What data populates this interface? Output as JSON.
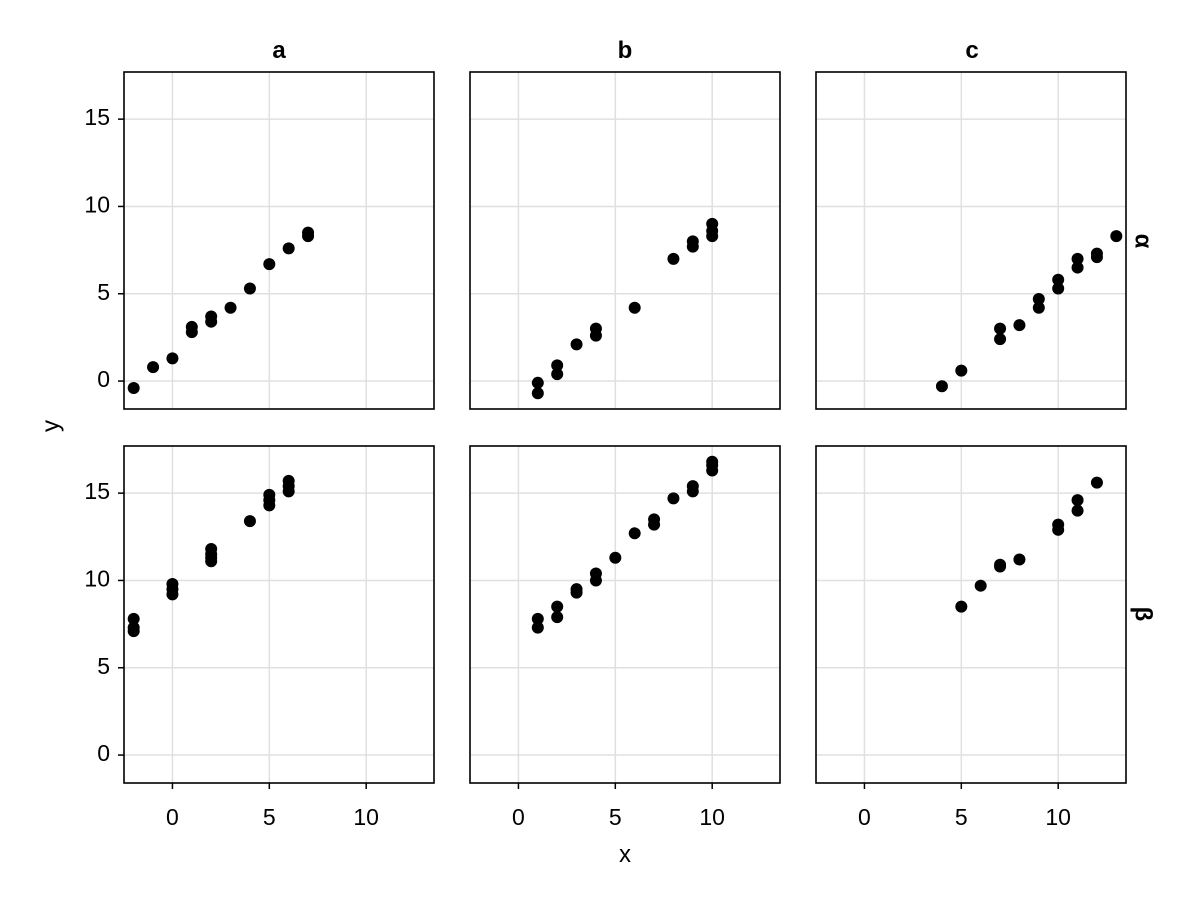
{
  "chart_data": {
    "type": "scatter",
    "xlabel": "x",
    "ylabel": "y",
    "col_titles": [
      "a",
      "b",
      "c"
    ],
    "row_labels": [
      "α",
      "β"
    ],
    "xlim": [
      -2.5,
      13.5
    ],
    "ylim": [
      -1.6,
      17.7
    ],
    "x_ticks": [
      0,
      5,
      10
    ],
    "y_ticks": [
      0,
      5,
      10,
      15
    ],
    "grid": true,
    "point_color": "#000000",
    "panels": [
      {
        "row": "α",
        "col": "a",
        "x": [
          -2,
          -1,
          0,
          1,
          1,
          2,
          2,
          3,
          4,
          5,
          6,
          7,
          7
        ],
        "y": [
          -0.4,
          0.8,
          1.3,
          2.8,
          3.1,
          3.4,
          3.7,
          4.2,
          5.3,
          6.7,
          7.6,
          8.3,
          8.5
        ]
      },
      {
        "row": "α",
        "col": "b",
        "x": [
          1,
          1,
          2,
          2,
          3,
          4,
          4,
          6,
          8,
          9,
          9,
          10,
          10,
          10
        ],
        "y": [
          -0.7,
          -0.1,
          0.4,
          0.9,
          2.1,
          2.6,
          3.0,
          4.2,
          7.0,
          7.7,
          8.0,
          8.3,
          8.6,
          9.0
        ]
      },
      {
        "row": "α",
        "col": "c",
        "x": [
          4,
          5,
          7,
          7,
          8,
          9,
          9,
          10,
          10,
          11,
          11,
          12,
          12,
          13
        ],
        "y": [
          -0.3,
          0.6,
          2.4,
          3.0,
          3.2,
          4.2,
          4.7,
          5.3,
          5.8,
          6.5,
          7.0,
          7.1,
          7.3,
          8.3
        ]
      },
      {
        "row": "β",
        "col": "a",
        "x": [
          -2,
          -2,
          -2,
          0,
          0,
          0,
          2,
          2,
          2,
          2,
          4,
          5,
          5,
          5,
          6,
          6,
          6
        ],
        "y": [
          7.1,
          7.3,
          7.8,
          9.2,
          9.5,
          9.8,
          11.1,
          11.3,
          11.5,
          11.8,
          13.4,
          14.3,
          14.6,
          14.9,
          15.1,
          15.4,
          15.7
        ]
      },
      {
        "row": "β",
        "col": "b",
        "x": [
          1,
          1,
          2,
          2,
          3,
          3,
          4,
          4,
          5,
          6,
          7,
          7,
          8,
          9,
          9,
          10,
          10,
          10
        ],
        "y": [
          7.3,
          7.8,
          7.9,
          8.5,
          9.3,
          9.5,
          10.0,
          10.4,
          11.3,
          12.7,
          13.2,
          13.5,
          14.7,
          15.1,
          15.4,
          16.3,
          16.6,
          16.8
        ]
      },
      {
        "row": "β",
        "col": "c",
        "x": [
          5,
          6,
          7,
          7,
          8,
          10,
          10,
          11,
          11,
          12
        ],
        "y": [
          8.5,
          9.7,
          10.8,
          10.9,
          11.2,
          12.9,
          13.2,
          14.0,
          14.6,
          15.6
        ]
      }
    ]
  }
}
